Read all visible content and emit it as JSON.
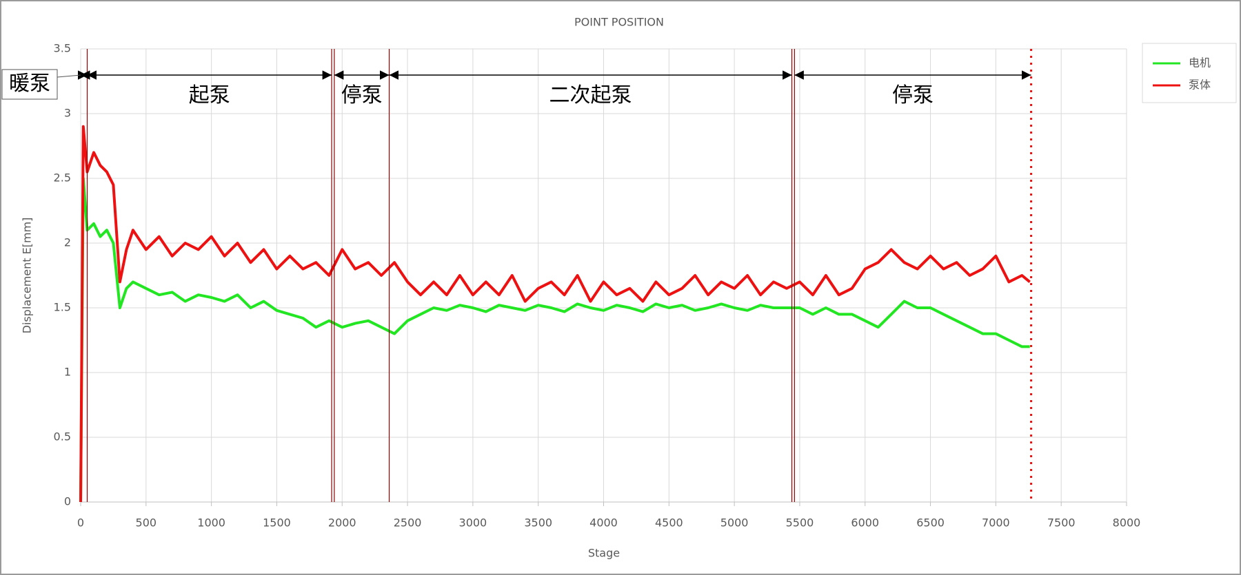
{
  "chart_data": {
    "type": "line",
    "title": "POINT POSITION",
    "x_label": "Stage",
    "y_label": "Displacement E[mm]",
    "xlim": [
      0,
      8000
    ],
    "xticks": [
      0,
      500,
      1000,
      1500,
      2000,
      2500,
      3000,
      3500,
      4000,
      4500,
      5000,
      5500,
      6000,
      6500,
      7000,
      7500,
      8000
    ],
    "ylim": [
      0,
      3.5
    ],
    "yticks": [
      0,
      0.5,
      1,
      1.5,
      2,
      2.5,
      3,
      3.5
    ],
    "grid": true,
    "legend": "right",
    "x": [
      0,
      20,
      50,
      100,
      150,
      200,
      250,
      300,
      350,
      400,
      500,
      600,
      700,
      800,
      900,
      1000,
      1100,
      1200,
      1300,
      1400,
      1500,
      1600,
      1700,
      1800,
      1900,
      2000,
      2100,
      2200,
      2300,
      2400,
      2500,
      2600,
      2700,
      2800,
      2900,
      3000,
      3100,
      3200,
      3300,
      3400,
      3500,
      3600,
      3700,
      3800,
      3900,
      4000,
      4100,
      4200,
      4300,
      4400,
      4500,
      4600,
      4700,
      4800,
      4900,
      5000,
      5100,
      5200,
      5300,
      5400,
      5500,
      5600,
      5700,
      5800,
      5900,
      6000,
      6100,
      6200,
      6300,
      6400,
      6500,
      6600,
      6700,
      6800,
      6900,
      7000,
      7100,
      7200,
      7260
    ],
    "series": [
      {
        "name": "电机",
        "color": "#22e622",
        "values": [
          0,
          2.5,
          2.1,
          2.15,
          2.05,
          2.1,
          2.0,
          1.5,
          1.65,
          1.7,
          1.65,
          1.6,
          1.62,
          1.55,
          1.6,
          1.58,
          1.55,
          1.6,
          1.5,
          1.55,
          1.48,
          1.45,
          1.42,
          1.35,
          1.4,
          1.35,
          1.38,
          1.4,
          1.35,
          1.3,
          1.4,
          1.45,
          1.5,
          1.48,
          1.52,
          1.5,
          1.47,
          1.52,
          1.5,
          1.48,
          1.52,
          1.5,
          1.47,
          1.53,
          1.5,
          1.48,
          1.52,
          1.5,
          1.47,
          1.53,
          1.5,
          1.52,
          1.48,
          1.5,
          1.53,
          1.5,
          1.48,
          1.52,
          1.5,
          1.5,
          1.5,
          1.45,
          1.5,
          1.45,
          1.45,
          1.4,
          1.35,
          1.45,
          1.55,
          1.5,
          1.5,
          1.45,
          1.4,
          1.35,
          1.3,
          1.3,
          1.25,
          1.2,
          1.2
        ]
      },
      {
        "name": "泵体",
        "color": "#ee1111",
        "values": [
          0,
          2.9,
          2.55,
          2.7,
          2.6,
          2.55,
          2.45,
          1.7,
          1.95,
          2.1,
          1.95,
          2.05,
          1.9,
          2.0,
          1.95,
          2.05,
          1.9,
          2.0,
          1.85,
          1.95,
          1.8,
          1.9,
          1.8,
          1.85,
          1.75,
          1.95,
          1.8,
          1.85,
          1.75,
          1.85,
          1.7,
          1.6,
          1.7,
          1.6,
          1.75,
          1.6,
          1.7,
          1.6,
          1.75,
          1.55,
          1.65,
          1.7,
          1.6,
          1.75,
          1.55,
          1.7,
          1.6,
          1.65,
          1.55,
          1.7,
          1.6,
          1.65,
          1.75,
          1.6,
          1.7,
          1.65,
          1.75,
          1.6,
          1.7,
          1.65,
          1.7,
          1.6,
          1.75,
          1.6,
          1.65,
          1.8,
          1.85,
          1.95,
          1.85,
          1.8,
          1.9,
          1.8,
          1.85,
          1.75,
          1.8,
          1.9,
          1.7,
          1.75,
          1.7
        ]
      }
    ],
    "boundaries": [
      50,
      1920,
      1940,
      2360,
      5440,
      5460
    ],
    "end_marker": 7270,
    "phases": [
      {
        "label": "暖泵",
        "start": 0,
        "end": 50
      },
      {
        "label": "起泵",
        "start": 50,
        "end": 1920
      },
      {
        "label": "停泵",
        "start": 1940,
        "end": 2360
      },
      {
        "label": "二次起泵",
        "start": 2360,
        "end": 5440
      },
      {
        "label": "停泵",
        "start": 5460,
        "end": 7270
      }
    ]
  }
}
